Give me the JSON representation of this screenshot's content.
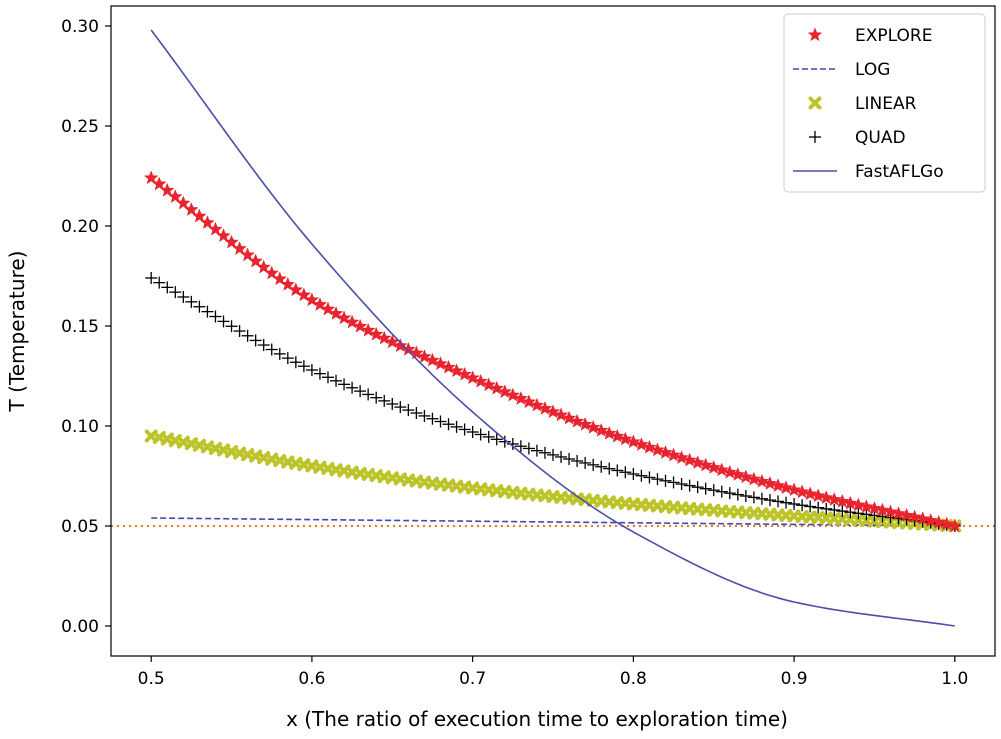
{
  "chart_data": {
    "type": "line",
    "title": "",
    "xlabel": "x (The ratio of execution time to exploration time)",
    "ylabel": "T (Temperature)",
    "xlim": [
      0.475,
      1.025
    ],
    "ylim": [
      -0.015,
      0.31
    ],
    "x_ticks": [
      {
        "value": 0.5,
        "label": "0.5"
      },
      {
        "value": 0.6,
        "label": "0.6"
      },
      {
        "value": 0.7,
        "label": "0.7"
      },
      {
        "value": 0.8,
        "label": "0.8"
      },
      {
        "value": 0.9,
        "label": "0.9"
      },
      {
        "value": 1.0,
        "label": "1.0"
      }
    ],
    "y_ticks": [
      {
        "value": 0.0,
        "label": "0.00"
      },
      {
        "value": 0.05,
        "label": "0.05"
      },
      {
        "value": 0.1,
        "label": "0.10"
      },
      {
        "value": 0.15,
        "label": "0.15"
      },
      {
        "value": 0.2,
        "label": "0.20"
      },
      {
        "value": 0.25,
        "label": "0.25"
      },
      {
        "value": 0.3,
        "label": "0.30"
      }
    ],
    "grid": false,
    "legend_position": "top-right",
    "reference_line": {
      "y": 0.05,
      "color": "#e8741e",
      "style": "dotted"
    },
    "series": [
      {
        "name": "EXPLORE",
        "marker": "star",
        "style": "markers",
        "color": "#e8242f",
        "x": [
          0.5,
          0.6,
          0.7,
          0.8,
          0.9,
          1.0
        ],
        "y": [
          0.224,
          0.163,
          0.124,
          0.092,
          0.068,
          0.05
        ]
      },
      {
        "name": "LOG",
        "marker": "none",
        "style": "dashed",
        "color": "#3d48b0",
        "x": [
          0.5,
          0.6,
          0.7,
          0.8,
          0.9,
          1.0
        ],
        "y": [
          0.054,
          0.0532,
          0.0524,
          0.0516,
          0.0508,
          0.05
        ]
      },
      {
        "name": "LINEAR",
        "marker": "x",
        "style": "markers",
        "color": "#bcc42a",
        "x": [
          0.5,
          0.6,
          0.7,
          0.8,
          0.9,
          1.0
        ],
        "y": [
          0.095,
          0.08,
          0.069,
          0.061,
          0.055,
          0.05
        ]
      },
      {
        "name": "QUAD",
        "marker": "plus",
        "style": "markers",
        "color": "#000000",
        "x": [
          0.5,
          0.6,
          0.7,
          0.8,
          0.9,
          1.0
        ],
        "y": [
          0.174,
          0.128,
          0.097,
          0.076,
          0.061,
          0.05
        ]
      },
      {
        "name": "FastAFLGo",
        "marker": "none",
        "style": "solid",
        "color": "#4a4fa8",
        "x": [
          0.5,
          0.6,
          0.7,
          0.8,
          0.9,
          1.0
        ],
        "y": [
          0.298,
          0.191,
          0.107,
          0.047,
          0.012,
          0.0
        ]
      }
    ]
  }
}
